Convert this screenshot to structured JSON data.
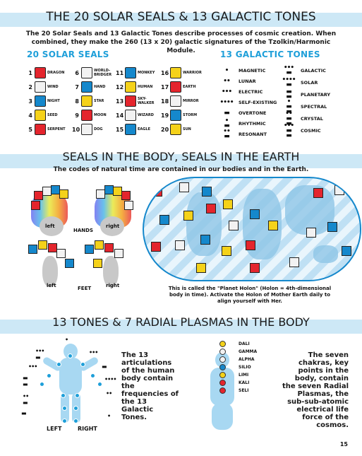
{
  "section1": {
    "title": "THE 20 SOLAR SEALS & 13 GALACTIC TONES",
    "intro": "The 20 Solar Seals and 13 Galactic Tones describe processes of cosmic creation. When combined, they make the 260 (13 x 20) galactic signatures of the Tzolkin/Harmonic Module.",
    "seals_heading": "20 SOLAR SEALS",
    "tones_heading": "13 GALACTIC TONES",
    "seals": [
      {
        "num": "1",
        "name": "DRAGON",
        "color": "#e4252d"
      },
      {
        "num": "2",
        "name": "WIND",
        "color": "#f2f2f2"
      },
      {
        "num": "3",
        "name": "NIGHT",
        "color": "#1588cc"
      },
      {
        "num": "4",
        "name": "SEED",
        "color": "#f5d21a"
      },
      {
        "num": "5",
        "name": "SERPENT",
        "color": "#e4252d"
      },
      {
        "num": "6",
        "name": "WORLD-BRIDGER",
        "color": "#f2f2f2"
      },
      {
        "num": "7",
        "name": "HAND",
        "color": "#1588cc"
      },
      {
        "num": "8",
        "name": "STAR",
        "color": "#f5d21a"
      },
      {
        "num": "9",
        "name": "MOON",
        "color": "#e4252d"
      },
      {
        "num": "10",
        "name": "DOG",
        "color": "#f2f2f2"
      },
      {
        "num": "11",
        "name": "MONKEY",
        "color": "#1588cc"
      },
      {
        "num": "12",
        "name": "HUMAN",
        "color": "#f5d21a"
      },
      {
        "num": "13",
        "name": "SKY-WALKER",
        "color": "#e4252d"
      },
      {
        "num": "14",
        "name": "WIZARD",
        "color": "#f2f2f2"
      },
      {
        "num": "15",
        "name": "EAGLE",
        "color": "#1588cc"
      },
      {
        "num": "16",
        "name": "WARRIOR",
        "color": "#f5d21a"
      },
      {
        "num": "17",
        "name": "EARTH",
        "color": "#e4252d"
      },
      {
        "num": "18",
        "name": "MIRROR",
        "color": "#f2f2f2"
      },
      {
        "num": "19",
        "name": "STORM",
        "color": "#1588cc"
      },
      {
        "num": "20",
        "name": "SUN",
        "color": "#f5d21a"
      }
    ],
    "tones": [
      {
        "dots": "•",
        "name": "MAGNETIC"
      },
      {
        "dots": "••",
        "name": "LUNAR"
      },
      {
        "dots": "•••",
        "name": "ELECTRIC"
      },
      {
        "dots": "••••",
        "name": "SELF-EXISTING"
      },
      {
        "dots": "▬",
        "name": "OVERTONE"
      },
      {
        "dots": "•\n▬",
        "name": "RHYTHMIC"
      },
      {
        "dots": "••\n▬",
        "name": "RESONANT"
      },
      {
        "dots": "•••\n▬",
        "name": "GALACTIC"
      },
      {
        "dots": "••••\n▬",
        "name": "SOLAR"
      },
      {
        "dots": "▬\n▬",
        "name": "PLANETARY"
      },
      {
        "dots": "•\n▬\n▬",
        "name": "SPECTRAL"
      },
      {
        "dots": "••\n▬\n▬",
        "name": "CRYSTAL"
      },
      {
        "dots": "•••\n▬\n▬",
        "name": "COSMIC"
      }
    ]
  },
  "section2": {
    "title": "SEALS IN THE BODY, SEALS IN THE EARTH",
    "intro": "The codes of natural time are contained in our bodies and in the Earth.",
    "hands_label": "HANDS",
    "feet_label": "FEET",
    "left": "left",
    "right": "right",
    "caption": "This is called the \"Planet Holon\" (Holon = 4th-dimensional body in time). Activate the Holon of Mother Earth daily to align yourself with Her."
  },
  "section3": {
    "title": "13 TONES & 7 RADIAL PLASMAS IN THE BODY",
    "tones_text": "The 13 articulations of the human body contain the frequencies of the 13 Galactic Tones.",
    "left": "LEFT",
    "right": "RIGHT",
    "plasmas": [
      "DALI",
      "GAMMA",
      "ALPHA",
      "SILIO",
      "LIMI",
      "KALI",
      "SELI"
    ],
    "plasma_colors": [
      "#f5d21a",
      "#f2f2f2",
      "#f2f2f2",
      "#1588cc",
      "#f5d21a",
      "#e4252d",
      "#e4252d"
    ],
    "chakra_text": "The seven chakras, key points in the body, contain the seven Radial Plasmas, the sub-sub-atomic electrical life force of the cosmos."
  },
  "page_number": "15"
}
